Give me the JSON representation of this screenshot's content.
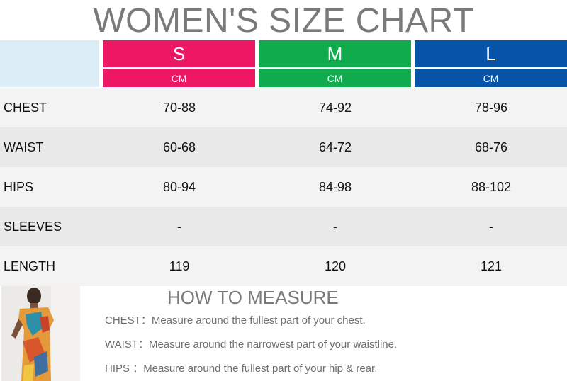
{
  "title": "WOMEN'S SIZE CHART",
  "sizes": [
    {
      "label": "S",
      "unit": "CM",
      "color": "#ee1763"
    },
    {
      "label": "M",
      "unit": "CM",
      "color": "#0fab4d"
    },
    {
      "label": "L",
      "unit": "CM",
      "color": "#0753a8"
    }
  ],
  "rows": [
    {
      "label": "CHEST",
      "values": [
        "70-88",
        "74-92",
        "78-96"
      ]
    },
    {
      "label": "WAIST",
      "values": [
        "60-68",
        "64-72",
        "68-76"
      ]
    },
    {
      "label": "HIPS",
      "values": [
        "80-94",
        "84-98",
        "88-102"
      ]
    },
    {
      "label": "SLEEVES",
      "values": [
        "-",
        "-",
        "-"
      ]
    },
    {
      "label": "LENGTH",
      "values": [
        "119",
        "120",
        "121"
      ]
    }
  ],
  "row_colors": [
    "#f3f3f3",
    "#e9e9e9"
  ],
  "how_to_measure": {
    "title": "HOW TO MEASURE",
    "items": [
      {
        "label": "CHEST：",
        "text": "Measure around the fullest part of your chest."
      },
      {
        "label": "WAIST：",
        "text": "Measure around the narrowest part of your waistline."
      },
      {
        "label": "HIPS ：",
        "text": "Measure around the fullest part of your hip & rear."
      }
    ]
  },
  "photo": {
    "icon": "model-photo"
  }
}
